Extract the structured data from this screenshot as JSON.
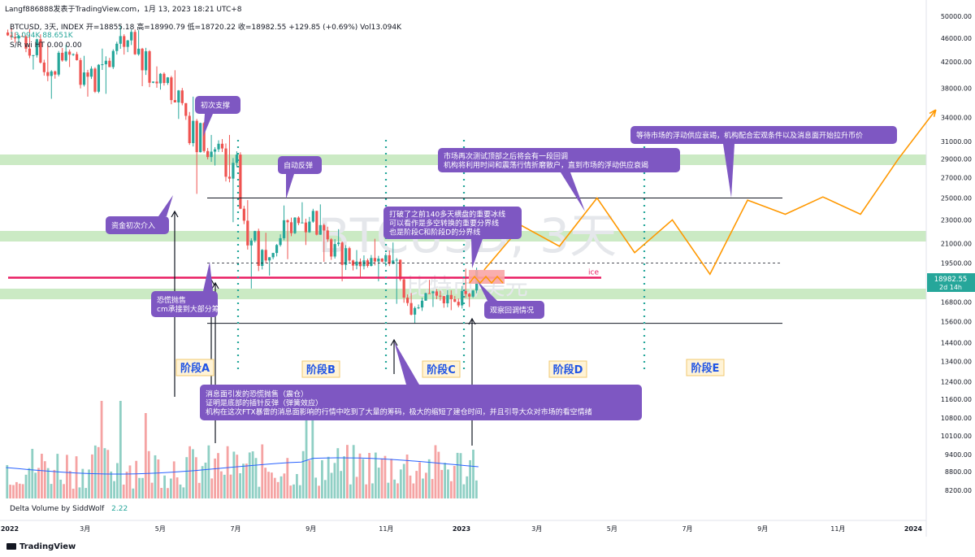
{
  "header": {
    "published": "Langf886888发表于TradingView.com，1月 13, 2023 18:21 UTC+8"
  },
  "legend": {
    "symbol_line": "BTCUSD, 3天, INDEX  开=18855.18  高=18990.79  低=18720.22  收=18982.55  +129.85 (+0.69%)  Vol13.094K",
    "vol_line": "13.094K  88.651K",
    "sr_line": "S/R wi HT  0.00  0.00"
  },
  "watermark": {
    "text": "BTCUSD, 3天",
    "sub": "比特币/美元"
  },
  "volume_indicator": {
    "label": "Delta Volume by SiddWolf",
    "value": "2.22"
  },
  "brand": {
    "name": "TradingView"
  },
  "colors": {
    "up": "#26a69a",
    "down": "#ef5350",
    "projection": "#ff9800",
    "annotation": "#7e57c2",
    "ice": "#e91e63",
    "phase_marker": "#26a69a",
    "zone": "#b9e3b0"
  },
  "chart_data": {
    "type": "candlestick",
    "symbol": "BTCUSD",
    "interval": "3天",
    "source": "INDEX",
    "last_price": {
      "value": "18982.55",
      "countdown": "2d 14h"
    },
    "y_axis": {
      "scale": "log",
      "ticks": [
        "50000.00",
        "46000.00",
        "42000.00",
        "38000.00",
        "34000.00",
        "31000.00",
        "29000.00",
        "27000.00",
        "25000.00",
        "23000.00",
        "21000.00",
        "19500.00",
        "18000.00",
        "16800.00",
        "15600.00",
        "14400.00",
        "13400.00",
        "12400.00",
        "11600.00",
        "10800.00",
        "10100.00",
        "9400.00",
        "8800.00",
        "8200.00"
      ]
    },
    "x_axis": {
      "ticks": [
        "2022",
        "3月",
        "5月",
        "7月",
        "9月",
        "11月",
        "2023",
        "3月",
        "5月",
        "7月",
        "9月",
        "11月",
        "2024"
      ]
    },
    "ohlc_sample": [
      [
        47000,
        47800,
        45200,
        46300
      ],
      [
        46300,
        47600,
        40800,
        41900
      ],
      [
        41900,
        45000,
        36500,
        43500
      ],
      [
        43500,
        44800,
        41200,
        42300
      ],
      [
        42300,
        43000,
        36800,
        37500
      ],
      [
        37500,
        44200,
        37200,
        43800
      ],
      [
        43800,
        48300,
        43200,
        47100
      ],
      [
        47100,
        47400,
        38300,
        38800
      ],
      [
        38800,
        41300,
        37800,
        39600
      ],
      [
        39600,
        40700,
        33800,
        34200
      ],
      [
        34200,
        36800,
        25400,
        29900
      ],
      [
        29900,
        31800,
        28300,
        30200
      ],
      [
        30200,
        31800,
        22800,
        24000
      ],
      [
        24000,
        24800,
        17700,
        19300
      ],
      [
        19300,
        21900,
        18600,
        20900
      ],
      [
        20900,
        24300,
        19800,
        23200
      ],
      [
        23200,
        24600,
        20900,
        23800
      ],
      [
        23800,
        24400,
        19600,
        20000
      ],
      [
        20000,
        22200,
        18200,
        19700
      ],
      [
        19700,
        20500,
        18500,
        19300
      ],
      [
        19300,
        21400,
        18200,
        20100
      ],
      [
        20100,
        21100,
        16700,
        17100
      ],
      [
        17100,
        17400,
        15500,
        16900
      ],
      [
        16900,
        18300,
        16500,
        17200
      ],
      [
        17200,
        17600,
        16300,
        16600
      ],
      [
        16600,
        19100,
        16500,
        18982.55
      ]
    ],
    "levels": [
      {
        "label": "",
        "value": 25000
      },
      {
        "label": "",
        "value": 19500
      },
      {
        "label": "ice",
        "value": 18450
      },
      {
        "label": "",
        "value": 15500
      }
    ],
    "projection": [
      {
        "date": "2023-01",
        "value": 19000
      },
      {
        "date": "2023-02",
        "value": 22500
      },
      {
        "date": "2023-03",
        "value": 20800
      },
      {
        "date": "2023-04",
        "value": 25000
      },
      {
        "date": "2023-05",
        "value": 20300
      },
      {
        "date": "2023-06",
        "value": 23000
      },
      {
        "date": "2023-07",
        "value": 18700
      },
      {
        "date": "2023-08",
        "value": 24800
      },
      {
        "date": "2023-09",
        "value": 23500
      },
      {
        "date": "2023-10",
        "value": 25100
      },
      {
        "date": "2023-11",
        "value": 23500
      },
      {
        "date": "2023-12",
        "value": 29000
      },
      {
        "date": "2024-01",
        "value": 35000
      }
    ],
    "phases": [
      {
        "label": "阶段A"
      },
      {
        "label": "阶段B"
      },
      {
        "label": "阶段C"
      },
      {
        "label": "阶段D"
      },
      {
        "label": "阶段E"
      }
    ],
    "annotations": [
      {
        "text": "初次支撑"
      },
      {
        "text": "资金初次介入"
      },
      {
        "text": "自动反弹"
      },
      {
        "lines": [
          "恐慌抛售",
          "cm承接到大部分筹码"
        ]
      },
      {
        "lines": [
          "打破了之前140多天横盘的重要冰线",
          "可以看作是多空转换的重要分界线",
          "也是阶段C和阶段D的分界线"
        ]
      },
      {
        "lines": [
          "市场再次测试顶部之后将会有一段回调",
          "机构将利用时间和震荡行情折磨散户，直到市场的浮动供应衰竭"
        ]
      },
      {
        "text": "观察回调情况"
      },
      {
        "text": "等待市场的浮动供应衰竭，机构配合宏观条件以及消息面开始拉升币价"
      },
      {
        "lines": [
          "消息面引发的恐慌抛售（震仓）",
          "证明是底部的插针反弹（弹簧效应）",
          "机构在这次FTX暴雷的消息面影响的行情中吃到了大量的筹码，极大的缩短了建仓时间，并且引导大众对市场的看空情绪"
        ]
      }
    ]
  }
}
